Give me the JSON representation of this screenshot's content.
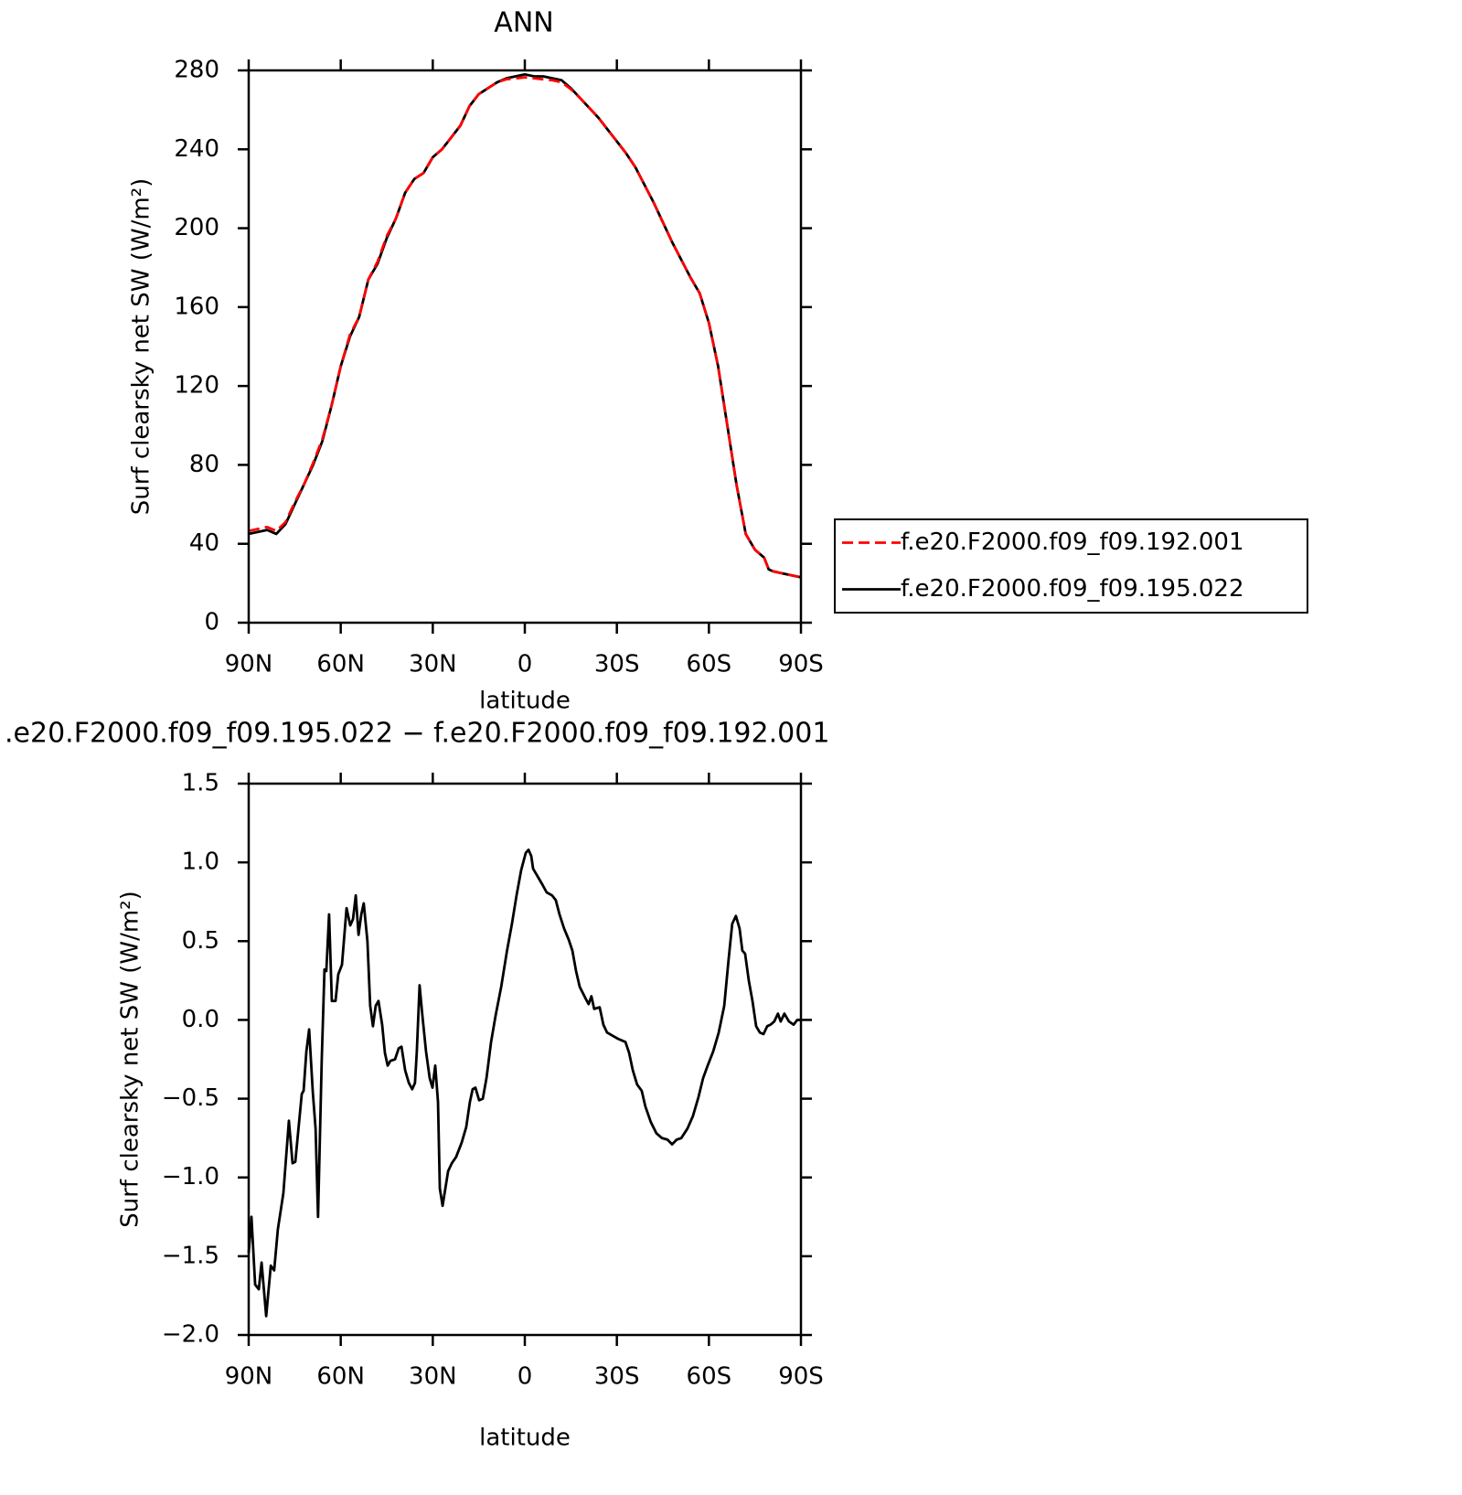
{
  "chart_data": [
    {
      "type": "line",
      "title": "ANN",
      "x_label": "latitude",
      "y_label": "Surf clearsky net SW (W/m²)",
      "x": [
        90,
        87,
        84,
        81,
        78,
        75,
        72,
        69,
        66,
        63,
        60,
        57,
        54,
        51,
        48,
        45,
        42,
        39,
        36,
        33,
        30,
        27,
        24,
        21,
        18,
        15,
        12,
        9,
        6,
        3,
        0,
        -3,
        -6,
        -9,
        -12,
        -15,
        -18,
        -21,
        -24,
        -27,
        -30,
        -33,
        -36,
        -39,
        -42,
        -45,
        -48,
        -51,
        -54,
        -57,
        -60,
        -63,
        -66,
        -69,
        -72,
        -75,
        -78,
        -79.5,
        -81,
        -84,
        -87,
        -90
      ],
      "series": [
        {
          "name": "f.e20.F2000.f09_f09.192.001",
          "color": "#ff0000",
          "dashed": true,
          "values": [
            46.5,
            47.5,
            48.5,
            46.5,
            51,
            61,
            70,
            81,
            93,
            110,
            130,
            146,
            155,
            174,
            183,
            196,
            205,
            218,
            225,
            228,
            236,
            240,
            246,
            252,
            262,
            268,
            271,
            274,
            275.5,
            276,
            276.5,
            276,
            275.5,
            275,
            274,
            270.5,
            266,
            261,
            256,
            250,
            244,
            238,
            231,
            222,
            213,
            203,
            193,
            184,
            175,
            167,
            152,
            130,
            100,
            70,
            45,
            37,
            33,
            27,
            26,
            25,
            24,
            23
          ]
        },
        {
          "name": "f.e20.F2000.f09_f09.195.022",
          "color": "#000000",
          "dashed": false,
          "values": [
            45,
            46,
            47,
            45,
            50,
            60,
            70,
            80,
            92,
            110,
            130,
            145,
            155,
            174,
            182,
            195,
            205,
            218,
            225,
            228,
            236,
            240,
            246,
            252,
            262,
            268,
            271,
            274,
            276,
            277,
            278,
            277,
            277,
            276,
            275,
            271,
            266,
            261,
            256,
            250,
            244,
            238,
            231,
            222,
            213,
            203,
            193,
            184,
            175,
            167,
            152,
            130,
            100,
            70,
            45,
            37,
            33,
            27,
            26,
            25,
            24,
            23
          ]
        }
      ],
      "xlim": [
        90,
        -90
      ],
      "xticks": [
        {
          "value": 90,
          "label": "90N"
        },
        {
          "value": 60,
          "label": "60N"
        },
        {
          "value": 30,
          "label": "30N"
        },
        0,
        {
          "value": -30,
          "label": "30S"
        },
        {
          "value": -60,
          "label": "60S"
        },
        {
          "value": -90,
          "label": "90S"
        }
      ],
      "ylim": [
        0,
        280
      ],
      "yticks": [
        0,
        40,
        80,
        120,
        160,
        200,
        240,
        280
      ]
    },
    {
      "type": "line",
      "title": ".e20.F2000.f09_f09.195.022 − f.e20.F2000.f09_f09.192.001",
      "x_label": "latitude",
      "y_label": "Surf clearsky net SW (W/m²)",
      "x": [
        90,
        89.1,
        87.9,
        86.7,
        85.8,
        84.3,
        82.8,
        81.7,
        80.5,
        78.7,
        76.9,
        75.7,
        74.8,
        72.7,
        72.1,
        71.2,
        70.3,
        69.1,
        68.2,
        67.4,
        66.2,
        65.3,
        64.7,
        63.8,
        62.9,
        61.7,
        60.8,
        59.6,
        58.1,
        56.9,
        56.0,
        55.1,
        54.2,
        53.3,
        52.5,
        51.3,
        50.4,
        49.5,
        48.6,
        47.7,
        46.5,
        45.6,
        44.7,
        43.8,
        42.3,
        41.1,
        40.2,
        39.0,
        37.8,
        36.7,
        35.8,
        35.2,
        34.3,
        33.4,
        32.2,
        31.0,
        30.1,
        29.2,
        28.3,
        27.7,
        26.8,
        25.9,
        25.0,
        23.8,
        22.4,
        20.6,
        19.1,
        17.9,
        17.0,
        16.1,
        14.9,
        13.7,
        12.5,
        11.0,
        9.5,
        7.7,
        5.8,
        4.2,
        2.7,
        1.2,
        -0.3,
        -1.2,
        -2.1,
        -2.7,
        -3.6,
        -4.5,
        -5.7,
        -7.1,
        -8.9,
        -10.1,
        -11.3,
        -12.8,
        -14.3,
        -15.5,
        -16.7,
        -17.9,
        -19.7,
        -20.8,
        -21.7,
        -22.6,
        -24.4,
        -25.6,
        -26.8,
        -28.6,
        -30.4,
        -32.8,
        -34.0,
        -35.2,
        -36.6,
        -38.1,
        -39.3,
        -41.1,
        -42.9,
        -44.7,
        -46.5,
        -48.0,
        -49.5,
        -51.0,
        -53.0,
        -54.8,
        -56.6,
        -58.1,
        -59.6,
        -61.4,
        -63.2,
        -65.0,
        -66.4,
        -67.6,
        -68.8,
        -70.0,
        -70.9,
        -71.8,
        -73.0,
        -74.2,
        -75.4,
        -76.6,
        -77.8,
        -79.0,
        -80.1,
        -81.3,
        -82.5,
        -83.4,
        -84.6,
        -86.1,
        -87.6,
        -88.8,
        -90
      ],
      "values": [
        -1.48,
        -1.25,
        -1.68,
        -1.71,
        -1.54,
        -1.88,
        -1.56,
        -1.59,
        -1.33,
        -1.1,
        -0.64,
        -0.91,
        -0.9,
        -0.47,
        -0.45,
        -0.2,
        -0.06,
        -0.46,
        -0.69,
        -1.25,
        -0.26,
        0.32,
        0.31,
        0.67,
        0.12,
        0.12,
        0.29,
        0.35,
        0.71,
        0.6,
        0.64,
        0.79,
        0.54,
        0.67,
        0.74,
        0.5,
        0.09,
        -0.04,
        0.09,
        0.12,
        -0.03,
        -0.21,
        -0.29,
        -0.26,
        -0.25,
        -0.18,
        -0.17,
        -0.32,
        -0.4,
        -0.44,
        -0.4,
        -0.2,
        0.22,
        0.03,
        -0.2,
        -0.37,
        -0.43,
        -0.29,
        -0.52,
        -1.07,
        -1.18,
        -1.07,
        -0.96,
        -0.91,
        -0.87,
        -0.78,
        -0.68,
        -0.52,
        -0.44,
        -0.43,
        -0.51,
        -0.5,
        -0.37,
        -0.14,
        0.03,
        0.21,
        0.44,
        0.61,
        0.79,
        0.95,
        1.06,
        1.08,
        1.04,
        0.96,
        0.93,
        0.9,
        0.86,
        0.81,
        0.79,
        0.76,
        0.67,
        0.58,
        0.51,
        0.44,
        0.31,
        0.21,
        0.14,
        0.1,
        0.15,
        0.07,
        0.08,
        -0.03,
        -0.08,
        -0.1,
        -0.12,
        -0.14,
        -0.21,
        -0.32,
        -0.41,
        -0.45,
        -0.55,
        -0.65,
        -0.72,
        -0.75,
        -0.76,
        -0.79,
        -0.76,
        -0.75,
        -0.69,
        -0.61,
        -0.49,
        -0.37,
        -0.29,
        -0.2,
        -0.08,
        0.09,
        0.38,
        0.61,
        0.66,
        0.58,
        0.44,
        0.42,
        0.25,
        0.12,
        -0.04,
        -0.08,
        -0.09,
        -0.04,
        -0.03,
        -0.01,
        0.04,
        -0.01,
        0.04,
        -0.01,
        -0.03,
        0.0,
        0.0
      ],
      "color": "#000000",
      "xlim": [
        90,
        -90
      ],
      "xticks": [
        {
          "value": 90,
          "label": "90N"
        },
        {
          "value": 60,
          "label": "60N"
        },
        {
          "value": 30,
          "label": "30N"
        },
        0,
        {
          "value": -30,
          "label": "30S"
        },
        {
          "value": -60,
          "label": "60S"
        },
        {
          "value": -90,
          "label": "90S"
        }
      ],
      "ylim": [
        -2.0,
        1.5
      ],
      "yticks": [
        {
          "value": -2.0,
          "label": "−2.0"
        },
        {
          "value": -1.5,
          "label": "−1.5"
        },
        {
          "value": -1.0,
          "label": "−1.0"
        },
        {
          "value": -0.5,
          "label": "−0.5"
        },
        {
          "value": 0.0,
          "label": "0.0"
        },
        0.5,
        {
          "value": 1.0,
          "label": "1.0"
        },
        1.5
      ]
    }
  ]
}
